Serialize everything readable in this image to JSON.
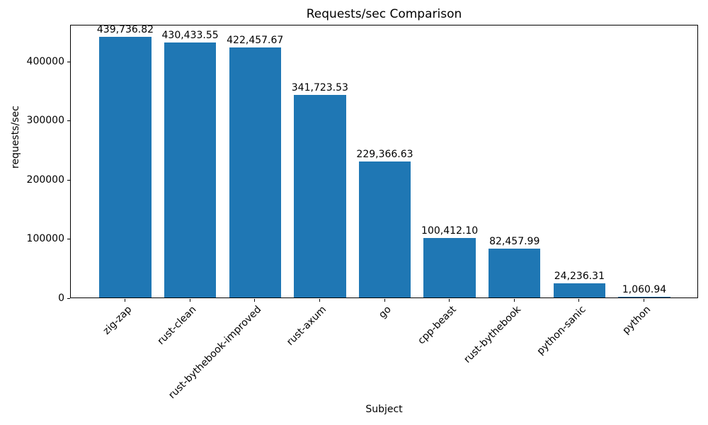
{
  "chart_data": {
    "type": "bar",
    "title": "Requests/sec Comparison",
    "xlabel": "Subject",
    "ylabel": "requests/sec",
    "categories": [
      "zig-zap",
      "rust-clean",
      "rust-bythebook-improved",
      "rust-axum",
      "go",
      "cpp-beast",
      "rust-bythebook",
      "python-sanic",
      "python"
    ],
    "values": [
      439736.82,
      430433.55,
      422457.67,
      341723.53,
      229366.63,
      100412.1,
      82457.99,
      24236.31,
      1060.94
    ],
    "value_labels": [
      "439,736.82",
      "430,433.55",
      "422,457.67",
      "341,723.53",
      "229,366.63",
      "100,412.10",
      "82,457.99",
      "24,236.31",
      "1,060.94"
    ],
    "yticks": [
      0,
      100000,
      200000,
      300000,
      400000
    ],
    "ytick_labels": [
      "0",
      "100000",
      "200000",
      "300000",
      "400000"
    ],
    "ylim": [
      0,
      461724
    ],
    "bar_color": "#1f77b4",
    "bar_width_fraction": 0.8,
    "xtick_rotation": 45,
    "grid": false,
    "legend": null
  }
}
